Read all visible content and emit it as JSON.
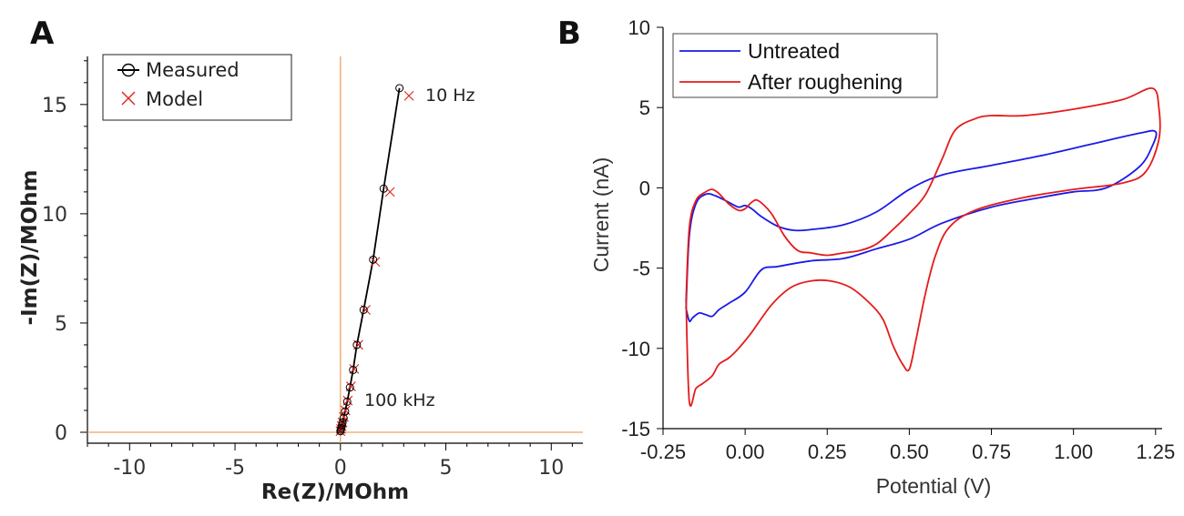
{
  "chart_data": [
    {
      "panel": "A",
      "type": "scatter",
      "xlabel": "Re(Z)/MOhm",
      "ylabel": "-Im(Z)/MOhm",
      "xlim": [
        -12,
        11.5
      ],
      "ylim": [
        -0.5,
        17.2
      ],
      "xticks": [
        -10,
        -5,
        0,
        5,
        10
      ],
      "xtick_labels": [
        "-10",
        "-5",
        "0",
        "5",
        "10"
      ],
      "yticks": [
        0,
        5,
        10,
        15
      ],
      "ytick_labels": [
        "0",
        "5",
        "10",
        "15"
      ],
      "legend": [
        "Measured",
        "Model"
      ],
      "annotations": [
        "10 Hz",
        "100 kHz"
      ],
      "crosshair_color": "#f0a060",
      "series": [
        {
          "name": "Measured",
          "color": "#000000",
          "marker": "circle",
          "x": [
            0.0,
            0.02,
            0.04,
            0.07,
            0.1,
            0.15,
            0.22,
            0.32,
            0.45,
            0.6,
            0.78,
            1.1,
            1.55,
            2.05,
            2.8
          ],
          "y": [
            0.05,
            0.12,
            0.2,
            0.3,
            0.45,
            0.65,
            0.95,
            1.4,
            2.05,
            2.85,
            4.0,
            5.6,
            7.9,
            11.15,
            15.75
          ]
        },
        {
          "name": "Model",
          "color": "#e02020",
          "marker": "x",
          "x": [
            0.0,
            0.03,
            0.06,
            0.1,
            0.16,
            0.24,
            0.35,
            0.5,
            0.65,
            0.85,
            1.2,
            1.65,
            2.35,
            3.25
          ],
          "y": [
            0.05,
            0.15,
            0.28,
            0.45,
            0.7,
            1.0,
            1.45,
            2.1,
            2.9,
            4.0,
            5.6,
            7.8,
            11.0,
            15.4
          ]
        }
      ]
    },
    {
      "panel": "B",
      "type": "line",
      "xlabel": "Potential (V)",
      "ylabel": "Current (nA)",
      "xlim": [
        -0.25,
        1.27
      ],
      "ylim": [
        -15,
        10
      ],
      "xticks": [
        -0.25,
        0.0,
        0.25,
        0.5,
        0.75,
        1.0,
        1.25
      ],
      "xtick_labels": [
        "-0.25",
        "0.00",
        "0.25",
        "0.50",
        "0.75",
        "1.00",
        "1.25"
      ],
      "yticks": [
        -15,
        -10,
        -5,
        0,
        5,
        10
      ],
      "ytick_labels": [
        "-15",
        "-10",
        "-5",
        "0",
        "5",
        "10"
      ],
      "legend": [
        "Untreated",
        "After roughening"
      ],
      "series": [
        {
          "name": "Untreated",
          "color": "#1a1ae6",
          "x": [
            -0.18,
            -0.17,
            -0.15,
            -0.12,
            -0.09,
            -0.05,
            -0.02,
            0.0,
            0.02,
            0.05,
            0.1,
            0.15,
            0.2,
            0.3,
            0.4,
            0.5,
            0.6,
            0.75,
            0.9,
            1.05,
            1.2,
            1.25,
            1.24,
            1.2,
            1.1,
            1.0,
            0.9,
            0.75,
            0.6,
            0.5,
            0.4,
            0.3,
            0.2,
            0.1,
            0.05,
            0.0,
            -0.05,
            -0.08,
            -0.1,
            -0.12,
            -0.14,
            -0.16,
            -0.17,
            -0.18
          ],
          "y": [
            -7.5,
            -3.0,
            -1.0,
            -0.4,
            -0.5,
            -0.9,
            -1.2,
            -1.1,
            -1.3,
            -1.8,
            -2.4,
            -2.65,
            -2.6,
            -2.3,
            -1.5,
            -0.1,
            0.8,
            1.4,
            2.0,
            2.7,
            3.4,
            3.5,
            2.6,
            1.3,
            0.0,
            -0.25,
            -0.6,
            -1.2,
            -2.2,
            -3.2,
            -3.8,
            -4.4,
            -4.55,
            -4.9,
            -5.1,
            -6.5,
            -7.2,
            -7.6,
            -8.0,
            -7.9,
            -7.8,
            -8.1,
            -8.3,
            -7.5
          ]
        },
        {
          "name": "After roughening",
          "color": "#e61a1a",
          "x": [
            -0.18,
            -0.17,
            -0.15,
            -0.12,
            -0.1,
            -0.08,
            -0.05,
            -0.02,
            0.0,
            0.02,
            0.04,
            0.08,
            0.12,
            0.16,
            0.2,
            0.25,
            0.3,
            0.35,
            0.4,
            0.45,
            0.5,
            0.55,
            0.6,
            0.64,
            0.7,
            0.75,
            0.85,
            1.0,
            1.15,
            1.24,
            1.26,
            1.26,
            1.22,
            1.15,
            1.0,
            0.85,
            0.7,
            0.62,
            0.58,
            0.55,
            0.52,
            0.5,
            0.48,
            0.45,
            0.42,
            0.38,
            0.32,
            0.26,
            0.2,
            0.14,
            0.08,
            0.02,
            -0.02,
            -0.05,
            -0.08,
            -0.1,
            -0.13,
            -0.15,
            -0.17,
            -0.18
          ],
          "y": [
            -7.0,
            -2.5,
            -0.8,
            -0.25,
            -0.1,
            -0.35,
            -1.0,
            -1.4,
            -1.3,
            -0.9,
            -0.8,
            -1.6,
            -3.0,
            -3.9,
            -4.05,
            -4.2,
            -4.05,
            -3.9,
            -3.5,
            -2.6,
            -1.6,
            -0.4,
            1.8,
            3.6,
            4.3,
            4.5,
            4.5,
            4.9,
            5.5,
            6.2,
            5.0,
            3.0,
            1.0,
            0.3,
            -0.1,
            -0.6,
            -1.4,
            -2.5,
            -4.2,
            -6.5,
            -9.5,
            -11.3,
            -11.0,
            -9.8,
            -8.2,
            -7.2,
            -6.2,
            -5.8,
            -5.8,
            -6.2,
            -7.3,
            -9.0,
            -10.0,
            -10.6,
            -11.0,
            -11.7,
            -12.2,
            -12.5,
            -13.3,
            -7.0
          ]
        }
      ]
    }
  ]
}
